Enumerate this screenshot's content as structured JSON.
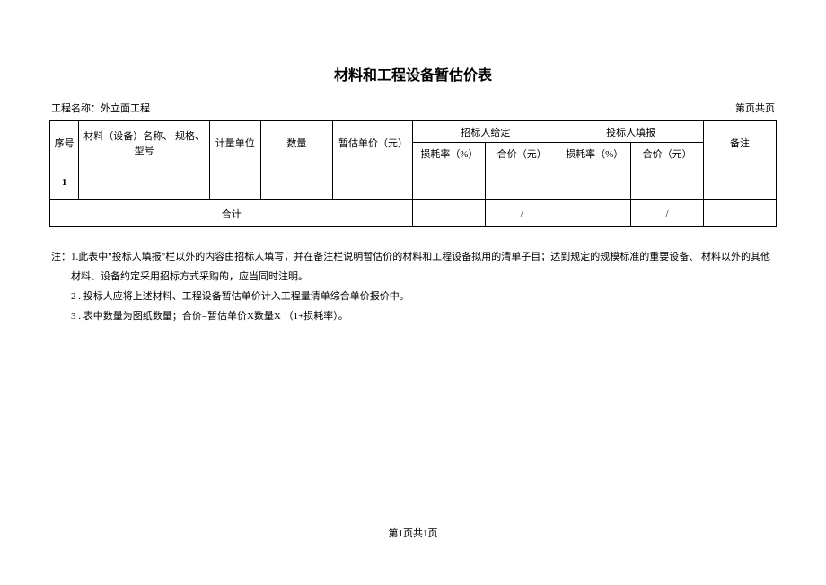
{
  "title": "材料和工程设备暂估价表",
  "header": {
    "project_label": "工程名称：外立面工程",
    "page_label": "第页共页"
  },
  "table": {
    "columns": {
      "seq": "序号",
      "name": "材料（设备）名称、 规格、型号",
      "unit": "计量单位",
      "quantity": "数量",
      "unit_price": "暂估单价（元）",
      "tender_group": "招标人给定",
      "bidder_group": "投标人填报",
      "loss_rate": "损耗率（%）",
      "total_price": "合价（元）",
      "remark": "备注"
    },
    "col_widths": {
      "seq": "4%",
      "name": "18%",
      "unit": "7%",
      "quantity": "10%",
      "unit_price": "11%",
      "loss_rate": "10%",
      "total_price": "10%",
      "remark": "10%"
    },
    "rows": [
      {
        "seq": "1",
        "name": "",
        "unit": "",
        "quantity": "",
        "unit_price": "",
        "t_loss": "",
        "t_total": "",
        "b_loss": "",
        "b_total": "",
        "remark": ""
      }
    ],
    "total_row": {
      "label": "合计",
      "t_total": "/",
      "b_total": "/"
    }
  },
  "notes": {
    "prefix": "注：",
    "items": [
      "1.此表中\"投标人填报\"栏以外的内容由招标人填写，并在备注栏说明暂估价的材料和工程设备拟用的清单子目；达到规定的规模标准的重要设备、 材料以外的其他材料、设备约定采用招标方式采购的，应当同时注明。",
      "2  . 投标人应将上述材料、工程设备暂估单价计入工程量清单综合单价报价中。",
      "3  . 表中数量为图纸数量；合价=暂估单价X数量X （1+损耗率）。"
    ]
  },
  "footer": "第1页共1页",
  "style": {
    "background_color": "#ffffff",
    "text_color": "#000000",
    "border_color": "#000000",
    "title_fontsize": 16,
    "body_fontsize": 11,
    "font_family": "SimSun"
  }
}
